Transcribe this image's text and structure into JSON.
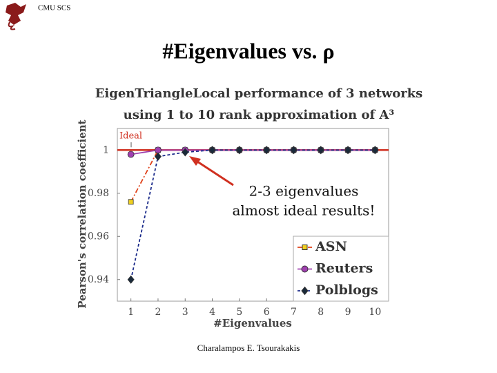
{
  "header": "CMU SCS",
  "title": "#Eigenvalues vs. ρ",
  "footer": "Charalampos E. Tsourakakis",
  "chart_data": {
    "type": "line",
    "title": [
      "EigenTriangleLocal performance of 3 networks",
      "using 1 to 10 rank approximation of A³"
    ],
    "x_label": "#Eigenvalues",
    "y_label": "Pearson's correlation coefficient",
    "x": [
      1,
      2,
      3,
      4,
      5,
      6,
      7,
      8,
      9,
      10
    ],
    "xlim": [
      0.5,
      10.5
    ],
    "xticks": [
      1,
      2,
      3,
      4,
      5,
      6,
      7,
      8,
      9,
      10
    ],
    "ylim": [
      0.93,
      1.01
    ],
    "yticks": [
      0.94,
      0.96,
      0.98,
      1
    ],
    "ideal": {
      "label": "Ideal",
      "value": 1,
      "color": "#d03020"
    },
    "annotation": [
      "2-3 eigenvalues",
      "almost ideal results!"
    ],
    "legend": "lower right",
    "series": [
      {
        "name": "ASN",
        "color": "#e04018",
        "marker": "square",
        "marker_color": "#f0d020",
        "dash": "7,3,2,3",
        "values": [
          0.976,
          1,
          1,
          1,
          1,
          1,
          1,
          1,
          1,
          1
        ]
      },
      {
        "name": "Reuters",
        "color": "#a040b0",
        "marker": "circle",
        "marker_color": "#a040b0",
        "dash": "",
        "values": [
          0.998,
          1,
          1,
          1,
          1,
          1,
          1,
          1,
          1,
          1
        ]
      },
      {
        "name": "Polblogs",
        "color": "#1a2a8a",
        "marker": "diamond",
        "marker_color": "#1a2a3a",
        "dash": "4,3",
        "values": [
          0.94,
          0.997,
          0.999,
          1,
          1,
          1,
          1,
          1,
          1,
          1
        ]
      }
    ]
  }
}
